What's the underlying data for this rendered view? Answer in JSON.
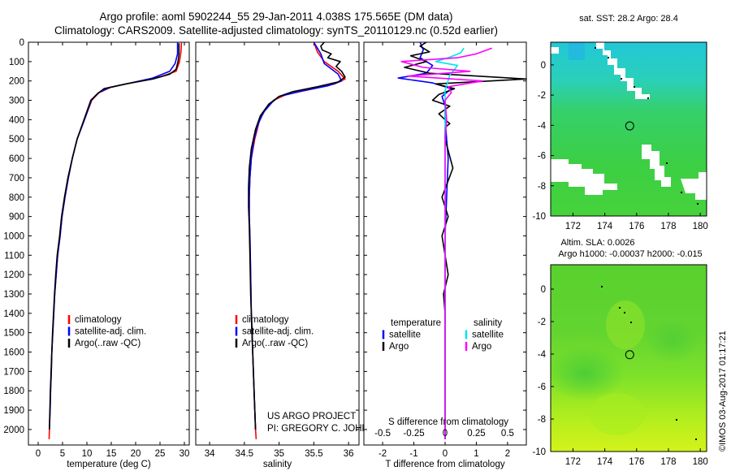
{
  "header": {
    "line1": "Argo profile: aoml 5902244_55 29-Jan-2011 4.038S 175.565E (DM data)",
    "line2": "Climatology: CARS2009. Satellite-adjusted climatology: synTS_20110129.nc (0.52d earlier)"
  },
  "colors": {
    "clim": "#ff0000",
    "sat": "#0000ff",
    "argo": "#000000",
    "sal_sat": "#00e5ee",
    "sal_argo": "#ff00ff"
  },
  "chart_data": [
    {
      "id": "temperature",
      "type": "line",
      "xlabel": "temperature (deg C)",
      "ylabel": "",
      "xlim": [
        -2,
        31
      ],
      "ylim": [
        2080,
        0
      ],
      "xticks": [
        0,
        5,
        10,
        15,
        20,
        25,
        30
      ],
      "yticks": [
        0,
        100,
        200,
        300,
        400,
        500,
        600,
        700,
        800,
        900,
        1000,
        1100,
        1200,
        1300,
        1400,
        1500,
        1600,
        1700,
        1800,
        1900,
        2000
      ],
      "legend": [
        "climatology",
        "satellite-adj. clim.",
        "Argo(..raw -QC)"
      ],
      "series": [
        {
          "name": "climatology",
          "color": "#ff0000",
          "points": [
            [
              29.4,
              0
            ],
            [
              29.3,
              50
            ],
            [
              29.0,
              100
            ],
            [
              28.3,
              150
            ],
            [
              25.0,
              180
            ],
            [
              20.0,
              205
            ],
            [
              15.0,
              232
            ],
            [
              12.5,
              260
            ],
            [
              11.0,
              300
            ],
            [
              9.5,
              400
            ],
            [
              8.0,
              500
            ],
            [
              7.0,
              600
            ],
            [
              6.2,
              700
            ],
            [
              5.5,
              800
            ],
            [
              4.9,
              900
            ],
            [
              4.5,
              1000
            ],
            [
              4.0,
              1100
            ],
            [
              3.7,
              1200
            ],
            [
              3.4,
              1300
            ],
            [
              3.2,
              1400
            ],
            [
              3.0,
              1500
            ],
            [
              2.8,
              1600
            ],
            [
              2.7,
              1700
            ],
            [
              2.55,
              1800
            ],
            [
              2.45,
              1900
            ],
            [
              2.3,
              2000
            ],
            [
              2.25,
              2050
            ]
          ]
        },
        {
          "name": "satellite-adj. clim.",
          "color": "#0000ff",
          "points": [
            [
              28.6,
              0
            ],
            [
              28.6,
              60
            ],
            [
              28.1,
              110
            ],
            [
              27.0,
              150
            ],
            [
              23.5,
              185
            ],
            [
              19.0,
              210
            ],
            [
              14.5,
              235
            ],
            [
              12.3,
              262
            ],
            [
              10.9,
              300
            ],
            [
              9.5,
              400
            ],
            [
              8.0,
              500
            ],
            [
              7.0,
              600
            ],
            [
              6.2,
              700
            ],
            [
              5.5,
              800
            ],
            [
              4.9,
              900
            ],
            [
              4.5,
              1000
            ],
            [
              4.0,
              1100
            ],
            [
              3.7,
              1200
            ],
            [
              3.4,
              1300
            ],
            [
              3.2,
              1400
            ],
            [
              3.0,
              1500
            ],
            [
              2.8,
              1600
            ],
            [
              2.7,
              1700
            ],
            [
              2.55,
              1800
            ],
            [
              2.45,
              1900
            ],
            [
              2.3,
              2000
            ]
          ]
        },
        {
          "name": "Argo(..raw -QC)",
          "color": "#000000",
          "points": [
            [
              28.9,
              5
            ],
            [
              28.9,
              60
            ],
            [
              28.7,
              100
            ],
            [
              28.3,
              140
            ],
            [
              27.0,
              165
            ],
            [
              23.5,
              190
            ],
            [
              18.0,
              215
            ],
            [
              13.5,
              240
            ],
            [
              12.2,
              265
            ],
            [
              10.8,
              300
            ],
            [
              9.4,
              400
            ],
            [
              8.0,
              500
            ],
            [
              7.0,
              600
            ],
            [
              6.1,
              700
            ],
            [
              5.4,
              800
            ],
            [
              4.8,
              900
            ],
            [
              4.4,
              1000
            ],
            [
              3.9,
              1100
            ],
            [
              3.6,
              1200
            ],
            [
              3.35,
              1300
            ],
            [
              3.15,
              1400
            ],
            [
              2.95,
              1500
            ],
            [
              2.8,
              1600
            ],
            [
              2.65,
              1700
            ],
            [
              2.5,
              1800
            ],
            [
              2.4,
              1900
            ],
            [
              2.3,
              2000
            ]
          ]
        }
      ]
    },
    {
      "id": "salinity",
      "type": "line",
      "xlabel": "salinity",
      "xlim": [
        33.8,
        36.15
      ],
      "ylim": [
        2080,
        0
      ],
      "xticks": [
        34,
        34.5,
        35,
        35.5,
        36
      ],
      "legend": [
        "climatology",
        "satellite-adj. clim.",
        "Argo(..raw -QC)"
      ],
      "annotation": [
        "US ARGO PROJECT",
        "PI: GREGORY C. JOHNSON"
      ],
      "series": [
        {
          "name": "climatology",
          "color": "#ff0000",
          "points": [
            [
              35.5,
              0
            ],
            [
              35.55,
              50
            ],
            [
              35.65,
              100
            ],
            [
              35.85,
              150
            ],
            [
              35.95,
              190
            ],
            [
              35.8,
              215
            ],
            [
              35.5,
              240
            ],
            [
              35.1,
              270
            ],
            [
              34.92,
              300
            ],
            [
              34.8,
              350
            ],
            [
              34.72,
              400
            ],
            [
              34.65,
              500
            ],
            [
              34.6,
              600
            ],
            [
              34.58,
              700
            ],
            [
              34.57,
              800
            ],
            [
              34.57,
              900
            ],
            [
              34.58,
              1000
            ],
            [
              34.59,
              1200
            ],
            [
              34.6,
              1400
            ],
            [
              34.62,
              1600
            ],
            [
              34.64,
              1800
            ],
            [
              34.66,
              2000
            ],
            [
              34.67,
              2050
            ]
          ]
        },
        {
          "name": "satellite-adj. clim.",
          "color": "#0000ff",
          "points": [
            [
              35.5,
              0
            ],
            [
              35.6,
              60
            ],
            [
              35.65,
              110
            ],
            [
              35.85,
              165
            ],
            [
              35.9,
              200
            ],
            [
              35.7,
              225
            ],
            [
              35.35,
              250
            ],
            [
              35.0,
              280
            ],
            [
              34.9,
              310
            ],
            [
              34.78,
              360
            ],
            [
              34.7,
              420
            ],
            [
              34.64,
              500
            ],
            [
              34.6,
              600
            ],
            [
              34.58,
              700
            ],
            [
              34.57,
              800
            ],
            [
              34.57,
              900
            ],
            [
              34.58,
              1000
            ],
            [
              34.59,
              1200
            ],
            [
              34.6,
              1400
            ],
            [
              34.62,
              1600
            ],
            [
              34.64,
              1800
            ],
            [
              34.66,
              2000
            ]
          ]
        },
        {
          "name": "Argo(..raw -QC)",
          "color": "#000000",
          "points": [
            [
              35.65,
              0
            ],
            [
              35.6,
              20
            ],
            [
              35.62,
              40
            ],
            [
              35.75,
              60
            ],
            [
              35.7,
              80
            ],
            [
              35.88,
              100
            ],
            [
              35.82,
              125
            ],
            [
              35.9,
              150
            ],
            [
              35.95,
              180
            ],
            [
              35.85,
              205
            ],
            [
              35.55,
              230
            ],
            [
              35.2,
              255
            ],
            [
              35.0,
              280
            ],
            [
              34.85,
              320
            ],
            [
              34.73,
              380
            ],
            [
              34.66,
              450
            ],
            [
              34.6,
              550
            ],
            [
              34.57,
              650
            ],
            [
              34.56,
              750
            ],
            [
              34.56,
              850
            ],
            [
              34.57,
              950
            ],
            [
              34.58,
              1100
            ],
            [
              34.59,
              1300
            ],
            [
              34.61,
              1500
            ],
            [
              34.63,
              1700
            ],
            [
              34.65,
              1900
            ],
            [
              34.66,
              2000
            ]
          ]
        }
      ]
    },
    {
      "id": "difference",
      "type": "line",
      "xlabel": "T difference from climatology",
      "xlabel_top": "S difference from climatology",
      "xlim": [
        -2.6,
        2.6
      ],
      "ylim": [
        2080,
        0
      ],
      "xticks": [
        -2,
        -1,
        0,
        1,
        2
      ],
      "xticks_s_labels": [
        "-0.5",
        "-0.25",
        "0",
        "0.25",
        "0.5"
      ],
      "legend_left_title": "temperature",
      "legend_right_title": "salinity",
      "legend": [
        "satellite",
        "Argo",
        "satellite",
        "Argo"
      ],
      "series": [
        {
          "name": "T satellite",
          "color": "#0000ff",
          "points": [
            [
              -0.8,
              0
            ],
            [
              -0.7,
              40
            ],
            [
              -0.8,
              80
            ],
            [
              -0.4,
              120
            ],
            [
              -0.6,
              160
            ],
            [
              -1.5,
              185
            ],
            [
              -0.4,
              210
            ],
            [
              0.2,
              240
            ],
            [
              -0.1,
              280
            ],
            [
              0,
              330
            ],
            [
              0,
              400
            ],
            [
              0.1,
              600
            ],
            [
              0.05,
              800
            ],
            [
              0,
              1000
            ],
            [
              0,
              1400
            ],
            [
              0,
              1800
            ],
            [
              0,
              2050
            ]
          ]
        },
        {
          "name": "T Argo",
          "color": "#000000",
          "points": [
            [
              -0.6,
              0
            ],
            [
              -0.8,
              20
            ],
            [
              -0.5,
              50
            ],
            [
              -1.1,
              70
            ],
            [
              -0.6,
              100
            ],
            [
              -1.3,
              130
            ],
            [
              -0.5,
              160
            ],
            [
              2.6,
              190
            ],
            [
              -0.3,
              215
            ],
            [
              0.3,
              240
            ],
            [
              -0.2,
              270
            ],
            [
              -0.4,
              300
            ],
            [
              0.15,
              330
            ],
            [
              -0.2,
              370
            ],
            [
              0,
              400
            ],
            [
              0.15,
              420
            ],
            [
              0,
              440
            ],
            [
              0,
              470
            ],
            [
              0,
              500
            ],
            [
              0.25,
              650
            ],
            [
              -0.1,
              800
            ],
            [
              0.1,
              900
            ],
            [
              -0.1,
              1000
            ],
            [
              0,
              1100
            ],
            [
              0.1,
              1200
            ],
            [
              -0.05,
              1300
            ],
            [
              0,
              1400
            ],
            [
              0,
              1800
            ],
            [
              0,
              2050
            ]
          ]
        },
        {
          "name": "S satellite",
          "color": "#00e5ee",
          "points": [
            [
              0.6,
              30
            ],
            [
              0.5,
              55
            ],
            [
              0.1,
              80
            ],
            [
              -0.3,
              100
            ],
            [
              0.4,
              120
            ],
            [
              0.15,
              170
            ],
            [
              0,
              250
            ],
            [
              0,
              300
            ],
            [
              0,
              600
            ],
            [
              0,
              1000
            ],
            [
              0,
              2050
            ]
          ]
        },
        {
          "name": "S Argo",
          "color": "#ff00ff",
          "points": [
            [
              1.5,
              30
            ],
            [
              1.0,
              60
            ],
            [
              0.4,
              80
            ],
            [
              -1.4,
              100
            ],
            [
              -0.7,
              130
            ],
            [
              0.8,
              150
            ],
            [
              -1.2,
              175
            ],
            [
              1.2,
              200
            ],
            [
              0.1,
              230
            ],
            [
              0.2,
              260
            ],
            [
              0,
              300
            ],
            [
              0.05,
              400
            ],
            [
              0,
              500
            ],
            [
              0,
              1000
            ],
            [
              0,
              2050
            ]
          ]
        }
      ]
    },
    {
      "id": "sst-map",
      "type": "heatmap",
      "title": "sat. SST: 28.2 Argo: 28.4",
      "xticks": [
        172,
        174,
        176,
        178,
        180
      ],
      "yticks": [
        0,
        -2,
        -4,
        -6,
        -8,
        -10
      ],
      "xlim": [
        170.6,
        180.4
      ],
      "ylim": [
        -10,
        1.5
      ],
      "marker": [
        175.565,
        -4.038
      ]
    },
    {
      "id": "sla-map",
      "type": "heatmap",
      "title": "Altim. SLA: 0.0026",
      "subtitle": "Argo h1000: -0.00037 h2000: -0.015",
      "xticks": [
        172,
        174,
        176,
        178,
        180
      ],
      "yticks": [
        0,
        -2,
        -4,
        -6,
        -8,
        -10
      ],
      "xlim": [
        170.6,
        180.4
      ],
      "ylim": [
        -10,
        1.5
      ],
      "marker": [
        175.565,
        -4.038
      ]
    }
  ],
  "footer": {
    "credit": "©IMOS 03-Aug-2017 01:17:21"
  }
}
